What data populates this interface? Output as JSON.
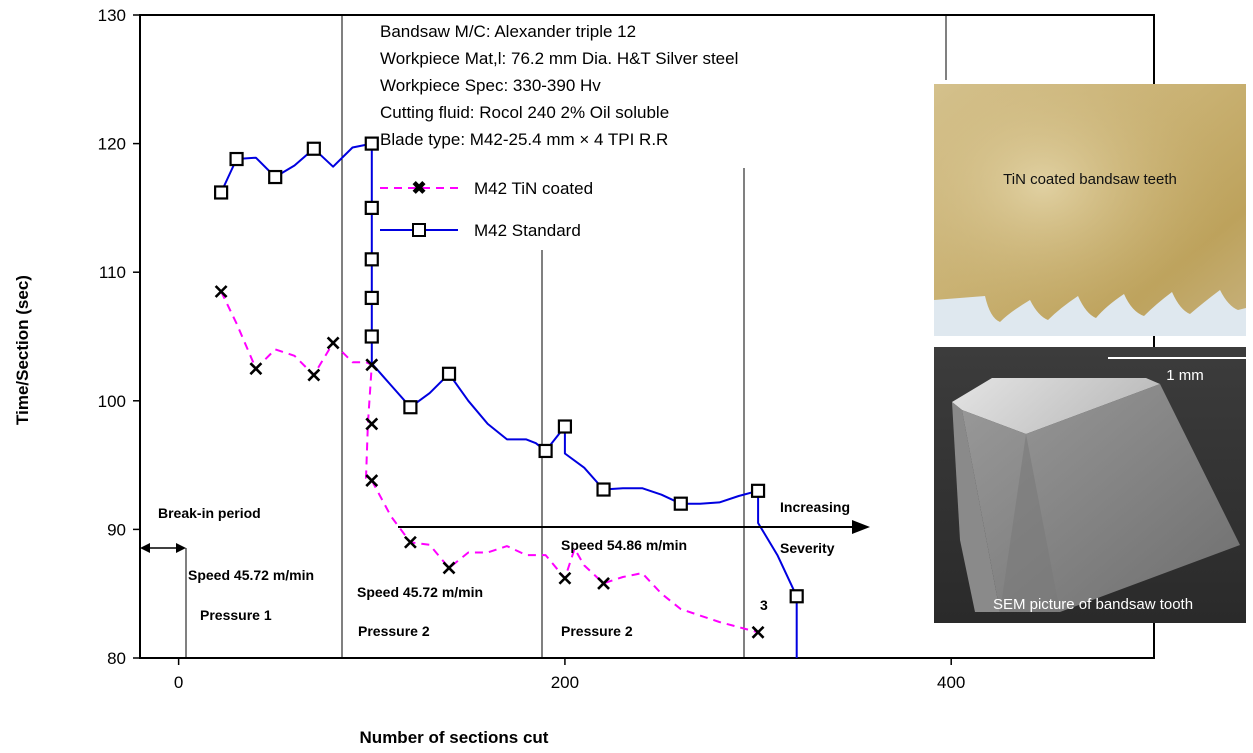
{
  "chart_data": {
    "type": "line",
    "xlabel": "Number of sections cut",
    "ylabel": "Time/Section (sec)",
    "xlim": [
      -20,
      505
    ],
    "ylim": [
      80,
      130
    ],
    "x_ticks": [
      0,
      200,
      400
    ],
    "y_ticks": [
      80,
      90,
      100,
      110,
      120,
      130
    ],
    "grid": "vertical lines at 100, 200, 300, 400 (partial)",
    "info_lines": [
      "Bandsaw M/C: Alexander triple 12",
      "Workpiece Mat,l: 76.2 mm Dia. H&T Silver steel",
      "Workpiece Spec: 330-390 Hv",
      "Cutting fluid: Rocol 240 2% Oil soluble",
      "Blade type: M42-25.4 mm × 4 TPI R.R"
    ],
    "legend_position": "top-center",
    "series": [
      {
        "name": "M42 TiN coated",
        "color": "#ff00ff",
        "marker": "x",
        "dash": true,
        "line": [
          [
            22,
            108.5
          ],
          [
            30,
            106
          ],
          [
            40,
            102.5
          ],
          [
            50,
            104
          ],
          [
            60,
            103.5
          ],
          [
            70,
            102
          ],
          [
            80,
            104.5
          ],
          [
            90,
            103
          ],
          [
            97,
            103
          ],
          [
            100,
            102.8
          ],
          [
            98,
            98.2
          ],
          [
            97,
            94
          ],
          [
            100,
            93.8
          ],
          [
            110,
            91
          ],
          [
            120,
            89
          ],
          [
            130,
            88.8
          ],
          [
            140,
            87
          ],
          [
            150,
            88.2
          ],
          [
            160,
            88.2
          ],
          [
            170,
            88.7
          ],
          [
            180,
            88
          ],
          [
            190,
            88
          ],
          [
            200,
            86.2
          ],
          [
            205,
            88.5
          ],
          [
            210,
            87.2
          ],
          [
            220,
            85.8
          ],
          [
            230,
            86.3
          ],
          [
            240,
            86.6
          ],
          [
            250,
            85
          ],
          [
            260,
            83.8
          ],
          [
            280,
            82.8
          ],
          [
            300,
            82
          ]
        ],
        "points": [
          [
            22,
            108.5
          ],
          [
            40,
            102.5
          ],
          [
            70,
            102
          ],
          [
            80,
            104.5
          ],
          [
            100,
            102.8
          ],
          [
            100,
            98.2
          ],
          [
            100,
            93.8
          ],
          [
            120,
            89
          ],
          [
            140,
            87
          ],
          [
            200,
            86.2
          ],
          [
            220,
            85.8
          ],
          [
            300,
            82
          ]
        ]
      },
      {
        "name": "M42 Standard",
        "color": "#0000e0",
        "marker": "square",
        "dash": false,
        "line": [
          [
            22,
            116.2
          ],
          [
            30,
            118.8
          ],
          [
            40,
            118.9
          ],
          [
            50,
            117.4
          ],
          [
            60,
            118.3
          ],
          [
            70,
            119.6
          ],
          [
            80,
            118.2
          ],
          [
            90,
            119.7
          ],
          [
            100,
            120
          ],
          [
            100,
            115
          ],
          [
            100,
            111
          ],
          [
            100,
            108
          ],
          [
            100,
            105
          ],
          [
            100,
            102.9
          ],
          [
            110,
            101.2
          ],
          [
            120,
            99.5
          ],
          [
            130,
            100.6
          ],
          [
            140,
            102.1
          ],
          [
            150,
            100
          ],
          [
            160,
            98.2
          ],
          [
            170,
            97
          ],
          [
            180,
            97
          ],
          [
            185,
            96.7
          ],
          [
            190,
            96.1
          ],
          [
            200,
            98
          ],
          [
            200,
            95.9
          ],
          [
            210,
            94.8
          ],
          [
            220,
            93.1
          ],
          [
            230,
            93.2
          ],
          [
            240,
            93.2
          ],
          [
            250,
            92.7
          ],
          [
            260,
            92
          ],
          [
            270,
            92
          ],
          [
            280,
            92.1
          ],
          [
            290,
            92.6
          ],
          [
            300,
            93
          ],
          [
            300,
            90.5
          ],
          [
            310,
            88
          ],
          [
            320,
            84.8
          ],
          [
            320,
            80
          ]
        ],
        "points": [
          [
            22,
            116.2
          ],
          [
            30,
            118.8
          ],
          [
            50,
            117.4
          ],
          [
            70,
            119.6
          ],
          [
            100,
            120
          ],
          [
            100,
            115
          ],
          [
            100,
            111
          ],
          [
            100,
            108
          ],
          [
            100,
            105
          ],
          [
            120,
            99.5
          ],
          [
            140,
            102.1
          ],
          [
            190,
            96.1
          ],
          [
            200,
            98
          ],
          [
            220,
            93.1
          ],
          [
            260,
            92
          ],
          [
            300,
            93
          ],
          [
            320,
            84.8
          ]
        ]
      }
    ],
    "annotations": {
      "break_in": "Break-in period",
      "speed1": "Speed 45.72 m/min",
      "pressure1": "Pressure 1",
      "speed2": "Speed 45.72 m/min",
      "pressure2a": "Pressure 2",
      "speed3": "Speed 54.86 m/min",
      "pressure2b": "Pressure 2",
      "increasing": "Increasing",
      "severity": "Severity",
      "marker3": "3"
    }
  },
  "photos": {
    "top_caption": "TiN coated bandsaw teeth",
    "bottom_caption": "SEM picture of bandsaw tooth",
    "scale_label": "1 mm"
  }
}
